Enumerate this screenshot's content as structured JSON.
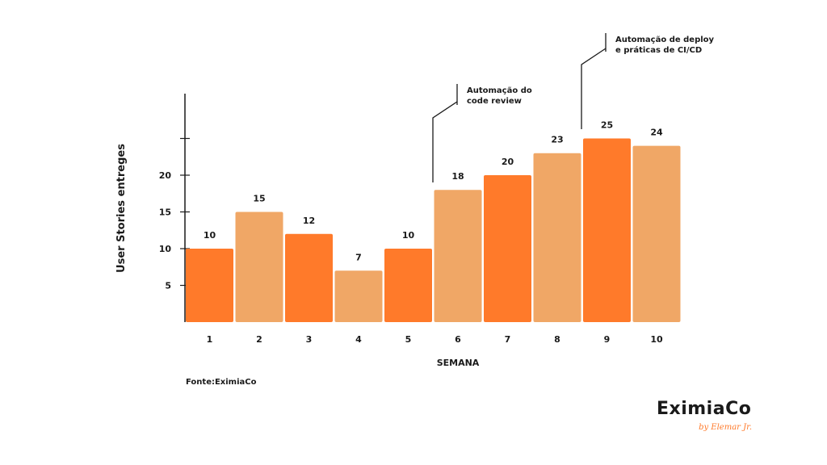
{
  "chart_data": {
    "type": "bar",
    "categories": [
      "1",
      "2",
      "3",
      "4",
      "5",
      "6",
      "7",
      "8",
      "9",
      "10"
    ],
    "values": [
      10,
      15,
      12,
      7,
      10,
      18,
      20,
      23,
      25,
      24
    ],
    "xlabel": "SEMANA",
    "ylabel": "User Stories entreges",
    "ylim": [
      0,
      31
    ],
    "yticks": [
      5,
      10,
      15,
      20,
      25
    ],
    "ytick_labels": [
      "5",
      "10",
      "15",
      "20",
      ""
    ],
    "grid": false,
    "colors": [
      "#ff7a2a",
      "#f0a766"
    ],
    "annotations": [
      {
        "category": "6",
        "text": [
          "Automação do",
          "code review"
        ]
      },
      {
        "category": "9",
        "text": [
          "Automação de deploy",
          "e práticas de CI/CD"
        ]
      }
    ]
  },
  "source": "Fonte:EximiaCo",
  "logo": {
    "main": "EximiaCo",
    "sub": "by Elemar Jr."
  }
}
